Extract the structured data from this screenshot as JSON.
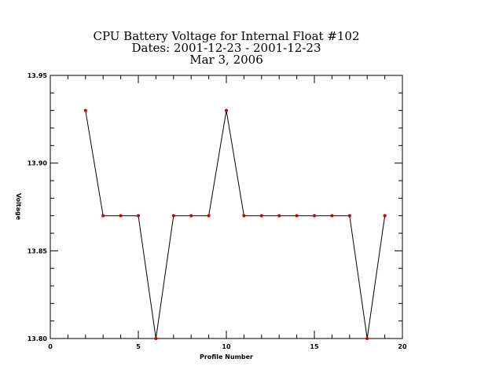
{
  "chart_data": {
    "type": "line",
    "title_lines": [
      "CPU Battery Voltage for Internal Float #102",
      "Dates:  2001-12-23 -  2001-12-23",
      "Mar  3, 2006"
    ],
    "xlabel": "Profile Number",
    "ylabel": "Voltage",
    "xlim": [
      0,
      20
    ],
    "ylim": [
      13.8,
      13.95
    ],
    "xticks": [
      0,
      5,
      10,
      15,
      20
    ],
    "yticks": [
      13.8,
      13.85,
      13.9,
      13.95
    ],
    "xtick_labels": [
      "0",
      "5",
      "10",
      "15",
      "20"
    ],
    "ytick_labels": [
      "13.80",
      "13.85",
      "13.90",
      "13.95"
    ],
    "grid": false,
    "line_color": "#000000",
    "marker_color": "#cc0000",
    "x": [
      2,
      3,
      4,
      5,
      6,
      7,
      8,
      9,
      10,
      11,
      12,
      13,
      14,
      15,
      16,
      17,
      18,
      19
    ],
    "y": [
      13.93,
      13.87,
      13.87,
      13.87,
      13.8,
      13.87,
      13.87,
      13.87,
      13.93,
      13.87,
      13.87,
      13.87,
      13.87,
      13.87,
      13.87,
      13.87,
      13.8,
      13.87
    ]
  }
}
